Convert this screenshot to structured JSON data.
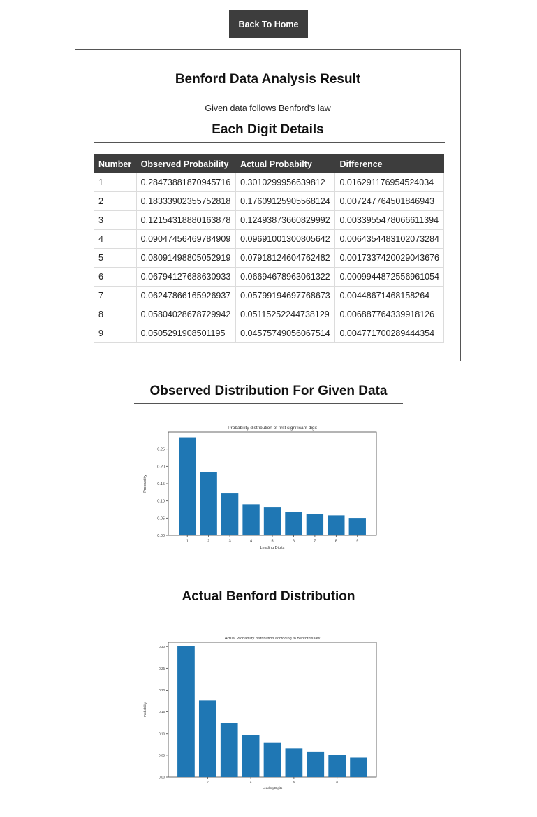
{
  "nav": {
    "home_label": "Back To Home"
  },
  "result": {
    "title": "Benford Data Analysis Result",
    "summary": "Given data follows Benford's law",
    "details_title": "Each Digit Details",
    "table": {
      "headers": [
        "Number",
        "Observed Probability",
        "Actual Probabilty",
        "Difference"
      ],
      "rows": [
        [
          "1",
          "0.28473881870945716",
          "0.3010299956639812",
          "0.016291176954524034"
        ],
        [
          "2",
          "0.18333902355752818",
          "0.17609125905568124",
          "0.007247764501846943"
        ],
        [
          "3",
          "0.12154318880163878",
          "0.12493873660829992",
          "0.0033955478066611394"
        ],
        [
          "4",
          "0.09047456469784909",
          "0.09691001300805642",
          "0.0064354483102073284"
        ],
        [
          "5",
          "0.08091498805052919",
          "0.07918124604762482",
          "0.0017337420029043676"
        ],
        [
          "6",
          "0.06794127688630933",
          "0.06694678963061322",
          "0.0009944872556961054"
        ],
        [
          "7",
          "0.06247866165926937",
          "0.05799194697768673",
          "0.00448671468158264"
        ],
        [
          "8",
          "0.05804028678729942",
          "0.05115252244738129",
          "0.006887764339918126"
        ],
        [
          "9",
          "0.0505291908501195",
          "0.04575749056067514",
          "0.004771700289444354"
        ]
      ]
    }
  },
  "observed_section": {
    "title": "Observed Distribution For Given Data"
  },
  "actual_section": {
    "title": "Actual Benford Distribution"
  },
  "chart_data": [
    {
      "type": "bar",
      "title": "Probability distribution of first significant digit",
      "xlabel": "Leading Digits",
      "ylabel": "Probability",
      "categories": [
        "1",
        "2",
        "3",
        "4",
        "5",
        "6",
        "7",
        "8",
        "9"
      ],
      "values": [
        0.2847,
        0.1833,
        0.1215,
        0.0905,
        0.0809,
        0.0679,
        0.0625,
        0.058,
        0.0505
      ],
      "ylim": [
        0,
        0.3
      ],
      "yticks": [
        "0.00",
        "0.05",
        "0.10",
        "0.15",
        "0.20",
        "0.25"
      ],
      "xticks": [
        "1",
        "2",
        "3",
        "4",
        "5",
        "6",
        "7",
        "8",
        "9"
      ],
      "bar_color": "#1f77b4"
    },
    {
      "type": "bar",
      "title": "Actual Probability distribution accroding to Benford's law",
      "xlabel": "Leading Digits",
      "ylabel": "Probability",
      "categories": [
        "1",
        "2",
        "3",
        "4",
        "5",
        "6",
        "7",
        "8",
        "9"
      ],
      "values": [
        0.301,
        0.1761,
        0.1249,
        0.0969,
        0.0792,
        0.0669,
        0.058,
        0.0512,
        0.0458
      ],
      "ylim": [
        0,
        0.31
      ],
      "yticks": [
        "0.00",
        "0.05",
        "0.10",
        "0.15",
        "0.20",
        "0.25",
        "0.30"
      ],
      "xticks": [
        "2",
        "4",
        "6",
        "8"
      ],
      "bar_color": "#1f77b4"
    }
  ]
}
